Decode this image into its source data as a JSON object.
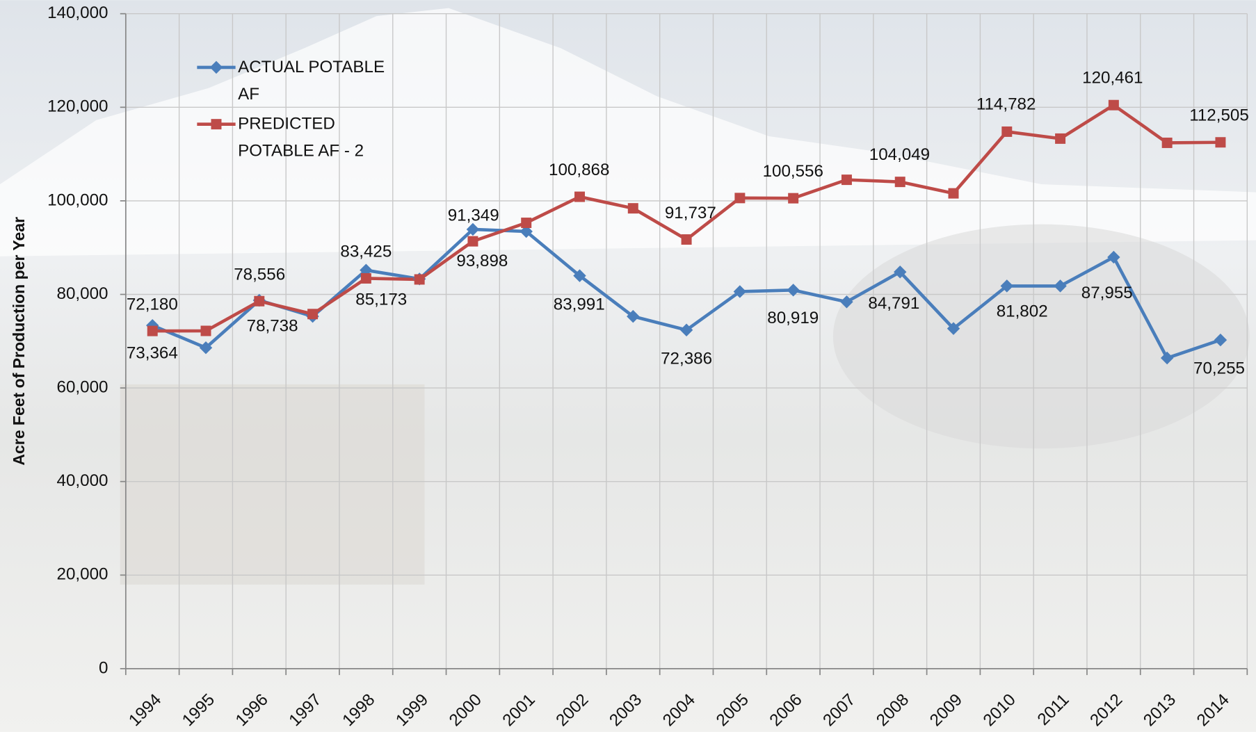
{
  "chart_data": {
    "type": "line",
    "y_label": "Acre Feet of Production per Year",
    "categories": [
      "1994",
      "1995",
      "1996",
      "1997",
      "1998",
      "1999",
      "2000",
      "2001",
      "2002",
      "2003",
      "2004",
      "2005",
      "2006",
      "2007",
      "2008",
      "2009",
      "2010",
      "2011",
      "2012",
      "2013",
      "2014"
    ],
    "series": [
      {
        "name": "ACTUAL POTABLE AF",
        "color": "#4a7ebb",
        "marker": "diamond",
        "values": [
          73364,
          68600,
          78738,
          75300,
          85173,
          83300,
          93898,
          93450,
          83991,
          75300,
          72386,
          80600,
          80919,
          78400,
          84791,
          72700,
          81802,
          81800,
          87955,
          66400,
          70255
        ],
        "value_labels": [
          "73,364",
          null,
          "78,738",
          null,
          "85,173",
          null,
          "93,898",
          null,
          "83,991",
          null,
          "72,386",
          null,
          "80,919",
          null,
          "84,791",
          null,
          "81,802",
          null,
          "87,955",
          null,
          "70,255"
        ]
      },
      {
        "name": "PREDICTED POTABLE AF - 2",
        "color": "#be4b48",
        "marker": "square",
        "values": [
          72180,
          72200,
          78556,
          75800,
          83425,
          83200,
          91349,
          95300,
          100868,
          98400,
          91737,
          100600,
          100556,
          104500,
          104049,
          101600,
          114782,
          113300,
          120461,
          112400,
          112505
        ],
        "value_labels": [
          "72,180",
          null,
          "78,556",
          null,
          "83,425",
          null,
          "91,349",
          null,
          "100,868",
          null,
          "91,737",
          null,
          "100,556",
          null,
          "104,049",
          null,
          "114,782",
          null,
          "120,461",
          null,
          "112,505"
        ]
      }
    ],
    "ylim": [
      0,
      140000
    ],
    "yticks": [
      {
        "value": 0,
        "label": "0"
      },
      {
        "value": 20000,
        "label": "20,000"
      },
      {
        "value": 40000,
        "label": "40,000"
      },
      {
        "value": 60000,
        "label": "60,000"
      },
      {
        "value": 80000,
        "label": "80,000"
      },
      {
        "value": 100000,
        "label": "100,000"
      },
      {
        "value": 120000,
        "label": "120,000"
      },
      {
        "value": 140000,
        "label": "140,000"
      }
    ],
    "grid": true,
    "legend": "top-left"
  }
}
